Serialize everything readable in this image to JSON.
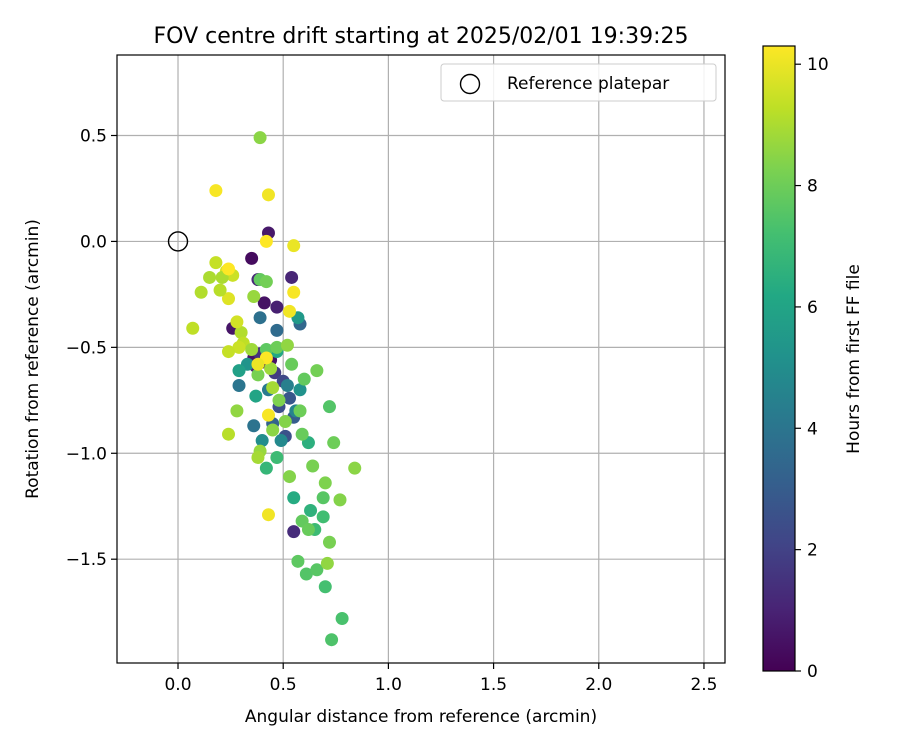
{
  "chart_data": {
    "type": "scatter",
    "title": "FOV centre drift starting at 2025/02/01 19:39:25",
    "xlabel": "Angular distance from reference (arcmin)",
    "ylabel": "Rotation from reference (arcmin)",
    "xlim": [
      -0.29,
      2.6
    ],
    "ylim": [
      -1.99,
      0.88
    ],
    "x_ticks": [
      0.0,
      0.5,
      1.0,
      1.5,
      2.0,
      2.5
    ],
    "x_tick_labels": [
      "0.0",
      "0.5",
      "1.0",
      "1.5",
      "2.0",
      "2.5"
    ],
    "y_ticks": [
      0.5,
      0.0,
      -0.5,
      -1.0,
      -1.5
    ],
    "y_tick_labels": [
      "0.5",
      "0.0",
      "−0.5",
      "−1.0",
      "−1.5"
    ],
    "grid": true,
    "legend": {
      "placement": "top-right",
      "entries": [
        "Reference platepar"
      ]
    },
    "reference_point": {
      "x": 0.0,
      "y": 0.0
    },
    "colorbar": {
      "label": "Hours from first FF file",
      "colormap": "viridis",
      "range": [
        0,
        10.3
      ],
      "ticks": [
        0,
        2,
        4,
        6,
        8,
        10
      ],
      "tick_labels": [
        "0",
        "2",
        "4",
        "6",
        "8",
        "10"
      ]
    },
    "points": [
      {
        "x": 0.4,
        "y": -0.57,
        "h": 0.4
      },
      {
        "x": 0.36,
        "y": -0.55,
        "h": 0.6
      },
      {
        "x": 0.42,
        "y": -0.53,
        "h": 0.8
      },
      {
        "x": 0.37,
        "y": -0.59,
        "h": 1.0
      },
      {
        "x": 0.44,
        "y": -0.56,
        "h": 0.5
      },
      {
        "x": 0.35,
        "y": -0.08,
        "h": 0.3
      },
      {
        "x": 0.43,
        "y": 0.04,
        "h": 0.7
      },
      {
        "x": 0.41,
        "y": -0.29,
        "h": 0.5
      },
      {
        "x": 0.47,
        "y": -0.31,
        "h": 0.9
      },
      {
        "x": 0.54,
        "y": -0.17,
        "h": 1.1
      },
      {
        "x": 0.38,
        "y": -0.18,
        "h": 1.2
      },
      {
        "x": 0.26,
        "y": -0.41,
        "h": 0.6
      },
      {
        "x": 0.55,
        "y": -1.37,
        "h": 1.3
      },
      {
        "x": 0.39,
        "y": -0.53,
        "h": 1.5
      },
      {
        "x": 0.46,
        "y": -0.62,
        "h": 1.8
      },
      {
        "x": 0.5,
        "y": -0.66,
        "h": 2.2
      },
      {
        "x": 0.48,
        "y": -0.78,
        "h": 2.5
      },
      {
        "x": 0.53,
        "y": -0.74,
        "h": 2.8
      },
      {
        "x": 0.55,
        "y": -0.83,
        "h": 3.0
      },
      {
        "x": 0.45,
        "y": -0.86,
        "h": 3.2
      },
      {
        "x": 0.51,
        "y": -0.92,
        "h": 2.6
      },
      {
        "x": 0.58,
        "y": -0.39,
        "h": 3.4
      },
      {
        "x": 0.47,
        "y": -0.42,
        "h": 3.6
      },
      {
        "x": 0.39,
        "y": -0.36,
        "h": 3.8
      },
      {
        "x": 0.36,
        "y": -0.87,
        "h": 3.9
      },
      {
        "x": 0.29,
        "y": -0.68,
        "h": 4.0
      },
      {
        "x": 0.43,
        "y": -0.7,
        "h": 4.2
      },
      {
        "x": 0.52,
        "y": -0.68,
        "h": 4.4
      },
      {
        "x": 0.56,
        "y": -0.8,
        "h": 4.6
      },
      {
        "x": 0.49,
        "y": -0.94,
        "h": 4.8
      },
      {
        "x": 0.4,
        "y": -0.94,
        "h": 5.0
      },
      {
        "x": 0.58,
        "y": -0.7,
        "h": 5.2
      },
      {
        "x": 0.33,
        "y": -0.58,
        "h": 5.3
      },
      {
        "x": 0.57,
        "y": -0.36,
        "h": 5.5
      },
      {
        "x": 0.29,
        "y": -0.61,
        "h": 5.8
      },
      {
        "x": 0.37,
        "y": -0.73,
        "h": 6.0
      },
      {
        "x": 0.47,
        "y": -0.52,
        "h": 6.2
      },
      {
        "x": 0.55,
        "y": -1.21,
        "h": 6.3
      },
      {
        "x": 0.62,
        "y": -0.95,
        "h": 6.5
      },
      {
        "x": 0.63,
        "y": -1.27,
        "h": 6.6
      },
      {
        "x": 0.42,
        "y": -1.07,
        "h": 6.8
      },
      {
        "x": 0.65,
        "y": -1.36,
        "h": 7.0
      },
      {
        "x": 0.69,
        "y": -1.3,
        "h": 7.1
      },
      {
        "x": 0.7,
        "y": -1.63,
        "h": 7.2
      },
      {
        "x": 0.78,
        "y": -1.78,
        "h": 7.3
      },
      {
        "x": 0.73,
        "y": -1.88,
        "h": 7.4
      },
      {
        "x": 0.61,
        "y": -1.57,
        "h": 7.5
      },
      {
        "x": 0.66,
        "y": -1.55,
        "h": 7.6
      },
      {
        "x": 0.57,
        "y": -1.51,
        "h": 7.7
      },
      {
        "x": 0.59,
        "y": -1.32,
        "h": 7.8
      },
      {
        "x": 0.62,
        "y": -1.36,
        "h": 7.9
      },
      {
        "x": 0.69,
        "y": -1.21,
        "h": 7.6
      },
      {
        "x": 0.72,
        "y": -0.78,
        "h": 7.5
      },
      {
        "x": 0.6,
        "y": -0.65,
        "h": 7.8
      },
      {
        "x": 0.58,
        "y": -0.8,
        "h": 8.0
      },
      {
        "x": 0.66,
        "y": -0.61,
        "h": 8.1
      },
      {
        "x": 0.59,
        "y": -0.91,
        "h": 7.9
      },
      {
        "x": 0.64,
        "y": -1.06,
        "h": 8.2
      },
      {
        "x": 0.7,
        "y": -1.14,
        "h": 8.3
      },
      {
        "x": 0.74,
        "y": -0.95,
        "h": 8.0
      },
      {
        "x": 0.77,
        "y": -1.22,
        "h": 8.4
      },
      {
        "x": 0.84,
        "y": -1.07,
        "h": 8.5
      },
      {
        "x": 0.72,
        "y": -1.42,
        "h": 8.2
      },
      {
        "x": 0.71,
        "y": -1.52,
        "h": 8.6
      },
      {
        "x": 0.53,
        "y": -1.11,
        "h": 8.4
      },
      {
        "x": 0.47,
        "y": -1.02,
        "h": 7.0
      },
      {
        "x": 0.39,
        "y": 0.49,
        "h": 8.5
      },
      {
        "x": 0.39,
        "y": -0.18,
        "h": 7.8
      },
      {
        "x": 0.42,
        "y": -0.19,
        "h": 8.1
      },
      {
        "x": 0.36,
        "y": -0.26,
        "h": 8.7
      },
      {
        "x": 0.42,
        "y": -0.51,
        "h": 7.7
      },
      {
        "x": 0.47,
        "y": -0.5,
        "h": 8.0
      },
      {
        "x": 0.52,
        "y": -0.49,
        "h": 8.6
      },
      {
        "x": 0.44,
        "y": -0.6,
        "h": 8.8
      },
      {
        "x": 0.54,
        "y": -0.58,
        "h": 7.9
      },
      {
        "x": 0.38,
        "y": -0.63,
        "h": 8.2
      },
      {
        "x": 0.45,
        "y": -0.69,
        "h": 8.9
      },
      {
        "x": 0.48,
        "y": -0.75,
        "h": 8.3
      },
      {
        "x": 0.51,
        "y": -0.85,
        "h": 8.4
      },
      {
        "x": 0.45,
        "y": -0.89,
        "h": 8.5
      },
      {
        "x": 0.39,
        "y": -0.99,
        "h": 8.7
      },
      {
        "x": 0.38,
        "y": -1.02,
        "h": 8.9
      },
      {
        "x": 0.28,
        "y": -0.8,
        "h": 8.6
      },
      {
        "x": 0.24,
        "y": -0.91,
        "h": 9.2
      },
      {
        "x": 0.3,
        "y": -0.43,
        "h": 9.1
      },
      {
        "x": 0.31,
        "y": -0.48,
        "h": 9.3
      },
      {
        "x": 0.35,
        "y": -0.51,
        "h": 8.8
      },
      {
        "x": 0.29,
        "y": -0.5,
        "h": 9.5
      },
      {
        "x": 0.24,
        "y": -0.52,
        "h": 9.4
      },
      {
        "x": 0.28,
        "y": -0.38,
        "h": 9.6
      },
      {
        "x": 0.24,
        "y": -0.27,
        "h": 9.8
      },
      {
        "x": 0.2,
        "y": -0.23,
        "h": 9.2
      },
      {
        "x": 0.15,
        "y": -0.17,
        "h": 9.0
      },
      {
        "x": 0.11,
        "y": -0.24,
        "h": 9.1
      },
      {
        "x": 0.07,
        "y": -0.41,
        "h": 9.3
      },
      {
        "x": 0.18,
        "y": -0.1,
        "h": 9.4
      },
      {
        "x": 0.23,
        "y": -0.14,
        "h": 9.7
      },
      {
        "x": 0.26,
        "y": -0.16,
        "h": 9.5
      },
      {
        "x": 0.21,
        "y": -0.17,
        "h": 9.0
      },
      {
        "x": 0.18,
        "y": 0.24,
        "h": 10.2
      },
      {
        "x": 0.43,
        "y": 0.22,
        "h": 10.1
      },
      {
        "x": 0.42,
        "y": 0.0,
        "h": 10.3
      },
      {
        "x": 0.55,
        "y": -0.02,
        "h": 10.0
      },
      {
        "x": 0.55,
        "y": -0.24,
        "h": 10.2
      },
      {
        "x": 0.53,
        "y": -0.33,
        "h": 10.1
      },
      {
        "x": 0.42,
        "y": -0.55,
        "h": 10.3
      },
      {
        "x": 0.38,
        "y": -0.58,
        "h": 10.0
      },
      {
        "x": 0.43,
        "y": -0.82,
        "h": 10.2
      },
      {
        "x": 0.43,
        "y": -1.29,
        "h": 10.1
      },
      {
        "x": 0.24,
        "y": -0.13,
        "h": 10.3
      }
    ]
  }
}
